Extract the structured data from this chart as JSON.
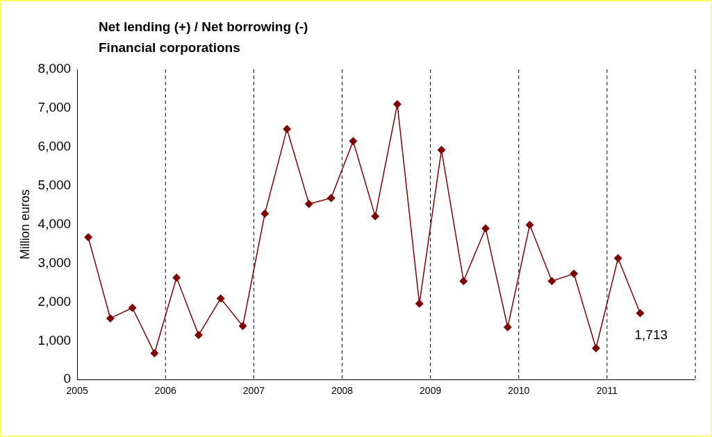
{
  "chart_data": {
    "type": "line",
    "title": "Net lending (+) / Net borrowing (-)",
    "subtitle": "Financial corporations",
    "ylabel": "Million euros",
    "x": [
      2005.125,
      2005.375,
      2005.625,
      2005.875,
      2006.125,
      2006.375,
      2006.625,
      2006.875,
      2007.125,
      2007.375,
      2007.625,
      2007.875,
      2008.125,
      2008.375,
      2008.625,
      2008.875,
      2009.125,
      2009.375,
      2009.625,
      2009.875,
      2010.125,
      2010.375,
      2010.625,
      2010.875,
      2011.125,
      2011.375
    ],
    "series": [
      {
        "color": "#800000",
        "values": [
          3670,
          1580,
          1850,
          680,
          2630,
          1150,
          2090,
          1380,
          4280,
          6460,
          4530,
          4680,
          6150,
          4210,
          7100,
          1960,
          5920,
          2540,
          3900,
          1350,
          3990,
          2540,
          2730,
          810,
          3130,
          1713
        ],
        "value_labels": [
          null,
          null,
          null,
          null,
          null,
          null,
          null,
          null,
          null,
          null,
          null,
          null,
          null,
          null,
          null,
          null,
          null,
          null,
          null,
          null,
          null,
          null,
          null,
          null,
          null,
          "1,713"
        ]
      }
    ],
    "xlim": [
      2005,
      2012
    ],
    "xticks": [
      2005,
      2006,
      2007,
      2008,
      2009,
      2010,
      2011,
      {
        "value": 2012,
        "label": null
      }
    ],
    "ylim": [
      0,
      8000
    ],
    "yticks": [
      {
        "value": 0,
        "label": "0"
      },
      {
        "value": 1000,
        "label": "1,000"
      },
      {
        "value": 2000,
        "label": "2,000"
      },
      {
        "value": 3000,
        "label": "3,000"
      },
      {
        "value": 4000,
        "label": "4,000"
      },
      {
        "value": 5000,
        "label": "5,000"
      },
      {
        "value": 6000,
        "label": "6,000"
      },
      {
        "value": 7000,
        "label": "7,000"
      },
      {
        "value": 8000,
        "label": "8,000"
      }
    ],
    "grid": "x",
    "marker": "diamond",
    "line_style": "solid",
    "legend": false
  }
}
